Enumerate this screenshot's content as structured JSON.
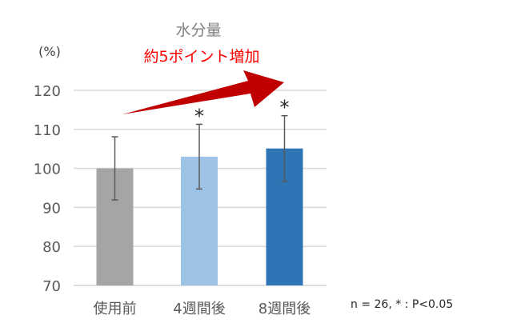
{
  "chart_data": {
    "type": "bar",
    "title": "水分量",
    "subtitle": "約5ポイント増加",
    "ylabel": "(%)",
    "xlabel": "",
    "categories": [
      "使用前",
      "4週間後",
      "8週間後"
    ],
    "values": [
      100,
      103.0,
      105.1
    ],
    "errors": [
      8.1,
      8.3,
      8.4
    ],
    "significance": [
      "",
      "*",
      "*"
    ],
    "ylim": [
      70,
      120
    ],
    "yticks": [
      70,
      80,
      90,
      100,
      110,
      120
    ],
    "grid": true,
    "colors": [
      "#a5a5a5",
      "#9dc3e6",
      "#2e75b6"
    ],
    "arrow_color": "#c00000",
    "subtitle_color": "#ff0000",
    "note": "n = 26, * : P<0.05"
  }
}
